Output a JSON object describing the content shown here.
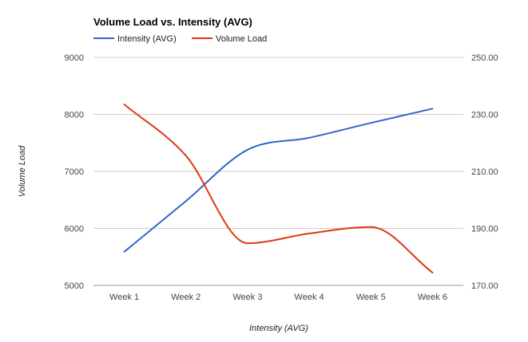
{
  "chart_data": {
    "type": "line",
    "title": "Volume Load vs. Intensity (AVG)",
    "categories": [
      "Week 1",
      "Week 2",
      "Week 3",
      "Week 4",
      "Week 5",
      "Week 6"
    ],
    "xlabel": "Intensity (AVG)",
    "ylabel": "Volume Load",
    "legend_position": "top-left",
    "grid": true,
    "left_axis": {
      "min": 5000,
      "max": 9000,
      "ticks": [
        "5000",
        "6000",
        "7000",
        "8000",
        "9000"
      ]
    },
    "right_axis": {
      "min": 170,
      "max": 250,
      "ticks": [
        "170.00",
        "190.00",
        "210.00",
        "230.00",
        "250.00"
      ]
    },
    "series": [
      {
        "name": "Intensity (AVG)",
        "axis": "left",
        "color": "#3366cc",
        "values": [
          5590,
          6480,
          7380,
          7590,
          7850,
          8100
        ]
      },
      {
        "name": "Volume Load",
        "axis": "right",
        "color": "#dc3912",
        "values": [
          233.5,
          215.5,
          184.8,
          188.2,
          190.5,
          174.5
        ]
      }
    ]
  }
}
